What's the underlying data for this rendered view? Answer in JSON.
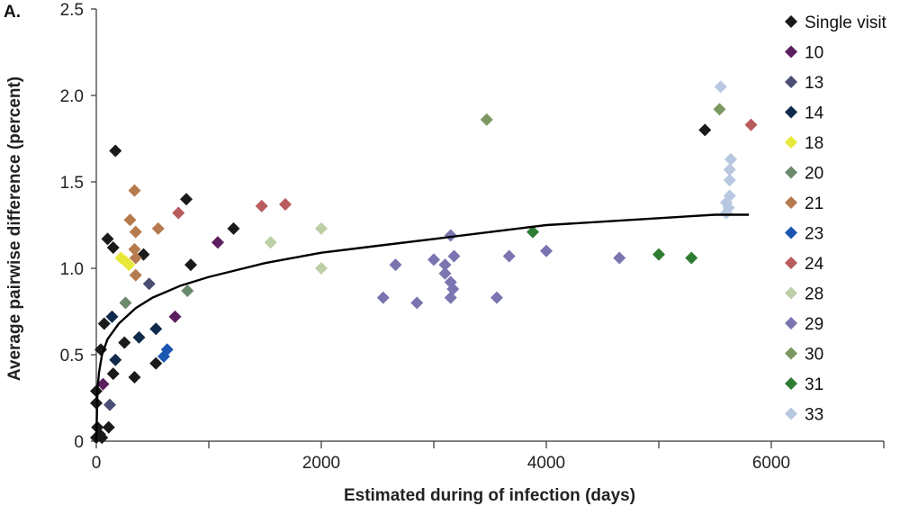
{
  "chart_data": {
    "type": "scatter",
    "panel_label": "A.",
    "xlabel": "Estimated during of infection (days)",
    "ylabel": "Average pairwise difference (percent)",
    "xlim": [
      0,
      7000
    ],
    "ylim": [
      0,
      2.5
    ],
    "x_ticks": [
      0,
      2000,
      4000,
      6000
    ],
    "x_minor_ticks": [
      1000,
      3000,
      5000,
      7000
    ],
    "y_ticks": [
      0,
      0.5,
      1.0,
      1.5,
      2.0,
      2.5
    ],
    "y_tick_labels": [
      "0",
      "0.5",
      "1.0",
      "1.5",
      "2.0",
      "2.5"
    ],
    "grid": false,
    "legend_position": "right",
    "series": [
      {
        "name": "Single visit",
        "color": "#1a1a1a",
        "points": [
          [
            0,
            0.02
          ],
          [
            10,
            0.08
          ],
          [
            30,
            0.04
          ],
          [
            50,
            0.02
          ],
          [
            0,
            0.22
          ],
          [
            0,
            0.29
          ],
          [
            40,
            0.53
          ],
          [
            70,
            0.68
          ],
          [
            110,
            0.08
          ],
          [
            150,
            0.39
          ],
          [
            250,
            0.57
          ],
          [
            340,
            0.37
          ],
          [
            100,
            1.17
          ],
          [
            150,
            1.12
          ],
          [
            170,
            1.68
          ],
          [
            420,
            1.08
          ],
          [
            530,
            0.45
          ],
          [
            800,
            1.4
          ],
          [
            840,
            1.02
          ],
          [
            1220,
            1.23
          ],
          [
            5410,
            1.8
          ]
        ]
      },
      {
        "name": "10",
        "color": "#5b1e5e",
        "points": [
          [
            60,
            0.33
          ],
          [
            700,
            0.72
          ],
          [
            1080,
            1.15
          ]
        ]
      },
      {
        "name": "13",
        "color": "#4a4e72",
        "points": [
          [
            120,
            0.21
          ],
          [
            470,
            0.91
          ]
        ]
      },
      {
        "name": "14",
        "color": "#0f2a4a",
        "points": [
          [
            140,
            0.72
          ],
          [
            170,
            0.47
          ],
          [
            380,
            0.6
          ],
          [
            530,
            0.65
          ]
        ]
      },
      {
        "name": "18",
        "color": "#e8e83a",
        "points": [
          [
            220,
            1.06
          ],
          [
            260,
            1.04
          ],
          [
            290,
            1.02
          ]
        ]
      },
      {
        "name": "20",
        "color": "#6b8a6b",
        "points": [
          [
            260,
            0.8
          ],
          [
            810,
            0.87
          ]
        ]
      },
      {
        "name": "21",
        "color": "#b57a4e",
        "points": [
          [
            300,
            1.28
          ],
          [
            340,
            1.45
          ],
          [
            350,
            1.21
          ],
          [
            340,
            1.11
          ],
          [
            350,
            1.06
          ],
          [
            350,
            0.96
          ],
          [
            550,
            1.23
          ]
        ]
      },
      {
        "name": "23",
        "color": "#1b56b0",
        "points": [
          [
            600,
            0.49
          ],
          [
            630,
            0.53
          ]
        ]
      },
      {
        "name": "24",
        "color": "#b85c5e",
        "points": [
          [
            730,
            1.32
          ],
          [
            1470,
            1.36
          ],
          [
            1680,
            1.37
          ],
          [
            5820,
            1.83
          ]
        ]
      },
      {
        "name": "28",
        "color": "#bcd0a8",
        "points": [
          [
            1550,
            1.15
          ],
          [
            2000,
            1.23
          ],
          [
            2000,
            1.0
          ]
        ]
      },
      {
        "name": "29",
        "color": "#7a74b0",
        "points": [
          [
            2550,
            0.83
          ],
          [
            2660,
            1.02
          ],
          [
            2850,
            0.8
          ],
          [
            3000,
            1.05
          ],
          [
            3100,
            1.02
          ],
          [
            3100,
            0.97
          ],
          [
            3150,
            1.19
          ],
          [
            3150,
            0.92
          ],
          [
            3150,
            0.83
          ],
          [
            3180,
            1.07
          ],
          [
            3170,
            0.88
          ],
          [
            3560,
            0.83
          ],
          [
            3670,
            1.07
          ],
          [
            4000,
            1.1
          ],
          [
            4650,
            1.06
          ]
        ]
      },
      {
        "name": "30",
        "color": "#7a9860",
        "points": [
          [
            3470,
            1.86
          ],
          [
            5540,
            1.92
          ]
        ]
      },
      {
        "name": "31",
        "color": "#2e7d32",
        "points": [
          [
            3880,
            1.21
          ],
          [
            5000,
            1.08
          ],
          [
            5290,
            1.06
          ]
        ]
      },
      {
        "name": "33",
        "color": "#b8c8e0",
        "points": [
          [
            5550,
            2.05
          ],
          [
            5600,
            1.38
          ],
          [
            5600,
            1.32
          ],
          [
            5620,
            1.35
          ],
          [
            5630,
            1.42
          ],
          [
            5630,
            1.51
          ],
          [
            5630,
            1.57
          ],
          [
            5640,
            1.63
          ]
        ]
      }
    ],
    "fit_curve": {
      "color": "#000000",
      "points": [
        [
          0,
          0.0
        ],
        [
          10,
          0.3
        ],
        [
          25,
          0.4
        ],
        [
          50,
          0.5
        ],
        [
          100,
          0.59
        ],
        [
          200,
          0.68
        ],
        [
          350,
          0.77
        ],
        [
          500,
          0.83
        ],
        [
          750,
          0.9
        ],
        [
          1000,
          0.95
        ],
        [
          1500,
          1.03
        ],
        [
          2000,
          1.09
        ],
        [
          2500,
          1.13
        ],
        [
          3000,
          1.17
        ],
        [
          3500,
          1.21
        ],
        [
          4000,
          1.25
        ],
        [
          4500,
          1.27
        ],
        [
          5000,
          1.29
        ],
        [
          5500,
          1.31
        ],
        [
          5800,
          1.31
        ]
      ]
    }
  }
}
